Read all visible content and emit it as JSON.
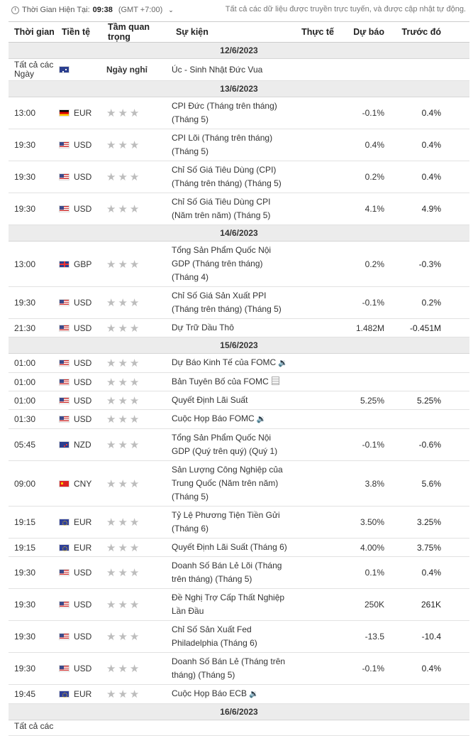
{
  "header": {
    "clock_label": "Thời Gian Hiện Tại:",
    "clock_time": "09:38",
    "timezone": "(GMT +7:00)",
    "note": "Tất cả các dữ liệu được truyền trực tuyến, và được cập nhật tự động."
  },
  "columns": {
    "time": "Thời gian",
    "currency": "Tiền tệ",
    "importance": "Tầm quan trọng",
    "event": "Sự kiện",
    "actual": "Thực tế",
    "forecast": "Dự báo",
    "previous": "Trước đó"
  },
  "groups": [
    {
      "date": "12/6/2023",
      "rows": [
        {
          "time": "Tất cả các Ngày",
          "flag": "au",
          "currency": "",
          "holiday": "Ngày nghỉ",
          "event": "Úc - Sinh Nhật Đức Vua",
          "forecast": "",
          "previous": "",
          "icon": ""
        }
      ]
    },
    {
      "date": "13/6/2023",
      "rows": [
        {
          "time": "13:00",
          "flag": "de",
          "currency": "EUR",
          "event": "CPI Đức (Tháng trên tháng) (Tháng 5)",
          "forecast": "-0.1%",
          "previous": "0.4%",
          "icon": ""
        },
        {
          "time": "19:30",
          "flag": "us",
          "currency": "USD",
          "event": "CPI Lõi (Tháng trên tháng) (Tháng 5)",
          "forecast": "0.4%",
          "previous": "0.4%",
          "icon": ""
        },
        {
          "time": "19:30",
          "flag": "us",
          "currency": "USD",
          "event": "Chỉ Số Giá Tiêu Dùng (CPI) (Tháng trên tháng) (Tháng 5)",
          "forecast": "0.2%",
          "previous": "0.4%",
          "icon": ""
        },
        {
          "time": "19:30",
          "flag": "us",
          "currency": "USD",
          "event": "Chỉ Số Giá Tiêu Dùng CPI (Năm trên năm) (Tháng 5)",
          "forecast": "4.1%",
          "previous": "4.9%",
          "icon": ""
        }
      ]
    },
    {
      "date": "14/6/2023",
      "rows": [
        {
          "time": "13:00",
          "flag": "gb",
          "currency": "GBP",
          "event": "Tổng Sản Phẩm Quốc Nội GDP (Tháng trên tháng) (Tháng 4)",
          "forecast": "0.2%",
          "previous": "-0.3%",
          "icon": ""
        },
        {
          "time": "19:30",
          "flag": "us",
          "currency": "USD",
          "event": "Chỉ Số Giá Sản Xuất PPI (Tháng trên tháng) (Tháng 5)",
          "forecast": "-0.1%",
          "previous": "0.2%",
          "icon": ""
        },
        {
          "time": "21:30",
          "flag": "us",
          "currency": "USD",
          "event": "Dự Trữ Dầu Thô",
          "forecast": "1.482M",
          "previous": "-0.451M",
          "icon": ""
        }
      ]
    },
    {
      "date": "15/6/2023",
      "rows": [
        {
          "time": "01:00",
          "flag": "us",
          "currency": "USD",
          "event": "Dự Báo Kinh Tế của FOMC",
          "forecast": "",
          "previous": "",
          "icon": "speaker"
        },
        {
          "time": "01:00",
          "flag": "us",
          "currency": "USD",
          "event": "Bản Tuyên Bố của FOMC",
          "forecast": "",
          "previous": "",
          "icon": "doc"
        },
        {
          "time": "01:00",
          "flag": "us",
          "currency": "USD",
          "event": "Quyết Định Lãi Suất",
          "forecast": "5.25%",
          "previous": "5.25%",
          "icon": ""
        },
        {
          "time": "01:30",
          "flag": "us",
          "currency": "USD",
          "event": "Cuộc Họp Báo FOMC",
          "forecast": "",
          "previous": "",
          "icon": "speaker"
        },
        {
          "time": "05:45",
          "flag": "nz",
          "currency": "NZD",
          "event": "Tổng Sản Phẩm Quốc Nội GDP (Quý trên quý) (Quý 1)",
          "forecast": "-0.1%",
          "previous": "-0.6%",
          "icon": ""
        },
        {
          "time": "09:00",
          "flag": "cn",
          "currency": "CNY",
          "event": "Sản Lượng Công Nghiệp của Trung Quốc (Năm trên năm) (Tháng 5)",
          "forecast": "3.8%",
          "previous": "5.6%",
          "icon": ""
        },
        {
          "time": "19:15",
          "flag": "eu",
          "currency": "EUR",
          "event": "Tỷ Lệ Phương Tiện Tiền Gửi (Tháng 6)",
          "forecast": "3.50%",
          "previous": "3.25%",
          "icon": ""
        },
        {
          "time": "19:15",
          "flag": "eu",
          "currency": "EUR",
          "event": "Quyết Định Lãi Suất (Tháng 6)",
          "forecast": "4.00%",
          "previous": "3.75%",
          "icon": ""
        },
        {
          "time": "19:30",
          "flag": "us",
          "currency": "USD",
          "event": "Doanh Số Bán Lẻ Lõi (Tháng trên tháng) (Tháng 5)",
          "forecast": "0.1%",
          "previous": "0.4%",
          "icon": ""
        },
        {
          "time": "19:30",
          "flag": "us",
          "currency": "USD",
          "event": "Đề Nghị Trợ Cấp Thất Nghiệp Lần Đầu",
          "forecast": "250K",
          "previous": "261K",
          "icon": ""
        },
        {
          "time": "19:30",
          "flag": "us",
          "currency": "USD",
          "event": "Chỉ Số Sản Xuất Fed Philadelphia (Tháng 6)",
          "forecast": "-13.5",
          "previous": "-10.4",
          "icon": ""
        },
        {
          "time": "19:30",
          "flag": "us",
          "currency": "USD",
          "event": "Doanh Số Bán Lẻ (Tháng trên tháng) (Tháng 5)",
          "forecast": "-0.1%",
          "previous": "0.4%",
          "icon": ""
        },
        {
          "time": "19:45",
          "flag": "eu",
          "currency": "EUR",
          "event": "Cuộc Họp Báo ECB",
          "forecast": "",
          "previous": "",
          "icon": "speaker"
        }
      ]
    },
    {
      "date": "16/6/2023",
      "rows": [
        {
          "time": "Tất cả các",
          "flag": "",
          "currency": "",
          "event": "",
          "forecast": "",
          "previous": "",
          "icon": ""
        }
      ]
    }
  ]
}
